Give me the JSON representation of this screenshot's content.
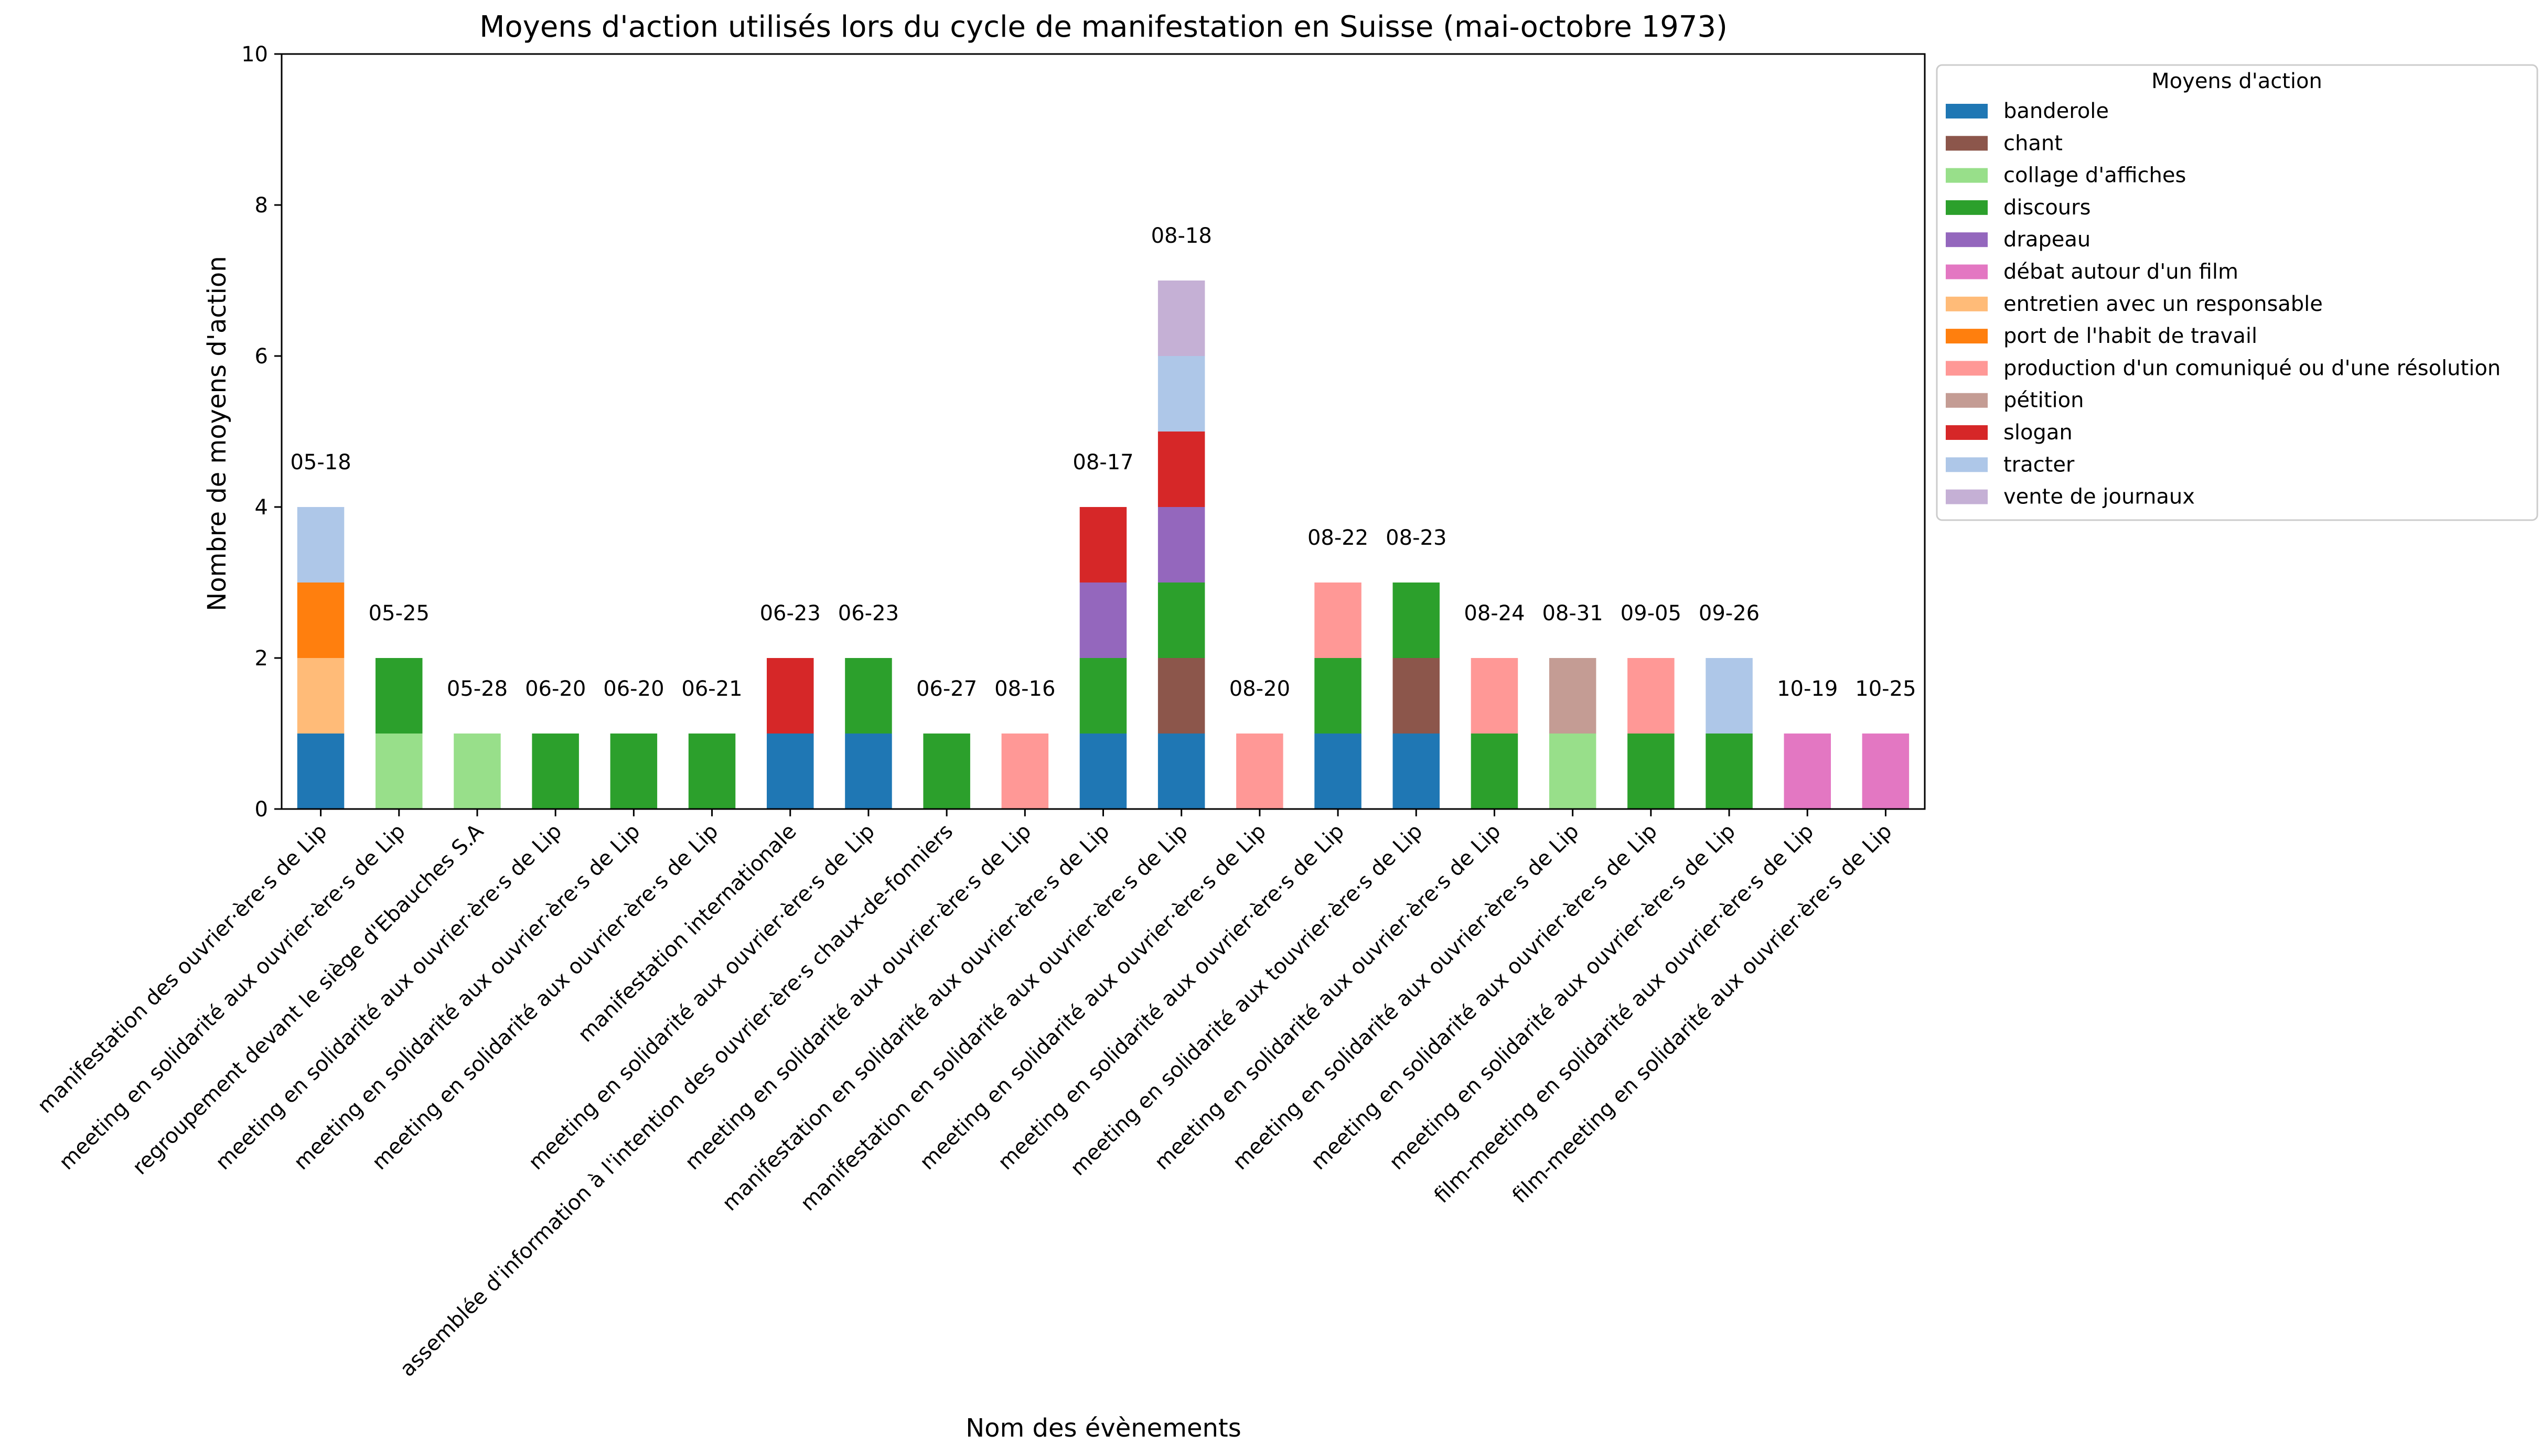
{
  "chart_data": {
    "type": "bar",
    "stacked": true,
    "title": "Moyens d'action utilisés lors du cycle de manifestation en Suisse (mai-octobre 1973)",
    "xlabel": "Nom des évènements",
    "ylabel": "Nombre de moyens d'action",
    "ylim": [
      0,
      10
    ],
    "yticks": [
      "0",
      "2",
      "4",
      "6",
      "8",
      "10"
    ],
    "grid": false,
    "legend": {
      "title": "Moyens d'action",
      "placement": "outside right, top"
    },
    "categories": [
      "manifestation des ouvrier·ère·s de Lip",
      "meeting en solidarité aux ouvrier·ère·s de Lip",
      "regroupement devant le siège d'Ebauches S.A",
      "meeting en solidarité aux ouvrier·ère·s de Lip",
      "meeting en solidarité aux ouvrier·ère·s de Lip",
      "meeting en solidarité aux ouvrier·ère·s de Lip",
      "manifestation internationale",
      "meeting en solidarité aux ouvrier·ère·s de Lip",
      "assemblée d'information à l'intention des ouvrier·ère·s chaux-de-fonniers",
      "meeting en solidarité aux ouvrier·ère·s de Lip",
      "manifestation en solidarité aux ouvrier·ère·s de Lip",
      "manifestation en solidarité aux ouvrier·ère·s de Lip",
      "meeting en solidarité aux ouvrier·ère·s de Lip",
      "meeting en solidarité aux ouvrier·ère·s de Lip",
      "meeting en solidarité aux touvrier·ère·s de Lip",
      "meeting en solidarité aux ouvrier·ère·s de Lip",
      "meeting en solidarité aux ouvrier·ère·s de Lip",
      "meeting en solidarité aux ouvrier·ère·s de Lip",
      "meeting en solidarité aux ouvrier·ère·s de Lip",
      "film-meeting en solidarité aux ouvrier·ère·s de Lip",
      "film-meeting en solidarité aux ouvrier·ère·s de Lip"
    ],
    "dates": [
      "05-18",
      "05-25",
      "05-28",
      "06-20",
      "06-20",
      "06-21",
      "06-23",
      "06-23",
      "06-27",
      "08-16",
      "08-17",
      "08-18",
      "08-20",
      "08-22",
      "08-23",
      "08-24",
      "08-31",
      "09-05",
      "09-26",
      "10-19",
      "10-25"
    ],
    "series": [
      {
        "name": "banderole",
        "color": "#1f77b4",
        "values": [
          1,
          0,
          0,
          0,
          0,
          0,
          1,
          1,
          0,
          0,
          1,
          1,
          0,
          1,
          1,
          0,
          0,
          0,
          0,
          0,
          0
        ]
      },
      {
        "name": "chant",
        "color": "#8c564b",
        "values": [
          0,
          0,
          0,
          0,
          0,
          0,
          0,
          0,
          0,
          0,
          0,
          1,
          0,
          0,
          1,
          0,
          0,
          0,
          0,
          0,
          0
        ]
      },
      {
        "name": "collage d'affiches",
        "color": "#98df8a",
        "values": [
          0,
          1,
          1,
          0,
          0,
          0,
          0,
          0,
          0,
          0,
          0,
          0,
          0,
          0,
          0,
          0,
          1,
          0,
          0,
          0,
          0
        ]
      },
      {
        "name": "discours",
        "color": "#2ca02c",
        "values": [
          0,
          1,
          0,
          1,
          1,
          1,
          0,
          1,
          1,
          0,
          1,
          1,
          0,
          1,
          1,
          1,
          0,
          1,
          1,
          0,
          0
        ]
      },
      {
        "name": "drapeau",
        "color": "#9467bd",
        "values": [
          0,
          0,
          0,
          0,
          0,
          0,
          0,
          0,
          0,
          0,
          1,
          1,
          0,
          0,
          0,
          0,
          0,
          0,
          0,
          0,
          0
        ]
      },
      {
        "name": "débat autour d'un film",
        "color": "#e377c2",
        "values": [
          0,
          0,
          0,
          0,
          0,
          0,
          0,
          0,
          0,
          0,
          0,
          0,
          0,
          0,
          0,
          0,
          0,
          0,
          0,
          1,
          1
        ]
      },
      {
        "name": "entretien avec un responsable",
        "color": "#ffbb78",
        "values": [
          1,
          0,
          0,
          0,
          0,
          0,
          0,
          0,
          0,
          0,
          0,
          0,
          0,
          0,
          0,
          0,
          0,
          0,
          0,
          0,
          0
        ]
      },
      {
        "name": "port de l'habit de travail",
        "color": "#ff7f0e",
        "values": [
          1,
          0,
          0,
          0,
          0,
          0,
          0,
          0,
          0,
          0,
          0,
          0,
          0,
          0,
          0,
          0,
          0,
          0,
          0,
          0,
          0
        ]
      },
      {
        "name": "production d'un comuniqué ou d'une résolution",
        "color": "#ff9896",
        "values": [
          0,
          0,
          0,
          0,
          0,
          0,
          0,
          0,
          0,
          1,
          0,
          0,
          1,
          1,
          0,
          1,
          0,
          1,
          0,
          0,
          0
        ]
      },
      {
        "name": "pétition",
        "color": "#c49c94",
        "values": [
          0,
          0,
          0,
          0,
          0,
          0,
          0,
          0,
          0,
          0,
          0,
          0,
          0,
          0,
          0,
          0,
          1,
          0,
          0,
          0,
          0
        ]
      },
      {
        "name": "slogan",
        "color": "#d62728",
        "values": [
          0,
          0,
          0,
          0,
          0,
          0,
          1,
          0,
          0,
          0,
          1,
          1,
          0,
          0,
          0,
          0,
          0,
          0,
          0,
          0,
          0
        ]
      },
      {
        "name": "tracter",
        "color": "#aec7e8",
        "values": [
          1,
          0,
          0,
          0,
          0,
          0,
          0,
          0,
          0,
          0,
          0,
          1,
          0,
          0,
          0,
          0,
          0,
          0,
          1,
          0,
          0
        ]
      },
      {
        "name": "vente de journaux",
        "color": "#c5b0d5",
        "values": [
          0,
          0,
          0,
          0,
          0,
          0,
          0,
          0,
          0,
          0,
          0,
          1,
          0,
          0,
          0,
          0,
          0,
          0,
          0,
          0,
          0
        ]
      }
    ]
  }
}
